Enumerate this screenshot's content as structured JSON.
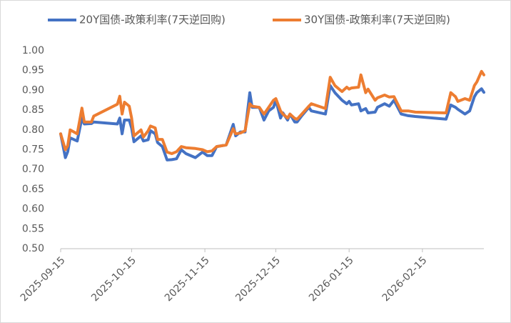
{
  "chart_data": {
    "type": "line",
    "x": [
      "2025-09-15",
      "2025-09-17",
      "2025-09-18",
      "2025-09-19",
      "2025-09-22",
      "2025-09-24",
      "2025-09-25",
      "2025-09-28",
      "2025-09-29",
      "2025-10-09",
      "2025-10-10",
      "2025-10-11",
      "2025-10-12",
      "2025-10-14",
      "2025-10-15",
      "2025-10-16",
      "2025-10-19",
      "2025-10-20",
      "2025-10-22",
      "2025-10-23",
      "2025-10-25",
      "2025-10-26",
      "2025-10-28",
      "2025-10-30",
      "2025-11-01",
      "2025-11-03",
      "2025-11-05",
      "2025-11-07",
      "2025-11-11",
      "2025-11-14",
      "2025-11-16",
      "2025-11-18",
      "2025-11-20",
      "2025-11-22",
      "2025-11-24",
      "2025-11-27",
      "2025-11-28",
      "2025-11-30",
      "2025-12-02",
      "2025-12-04",
      "2025-12-05",
      "2025-12-08",
      "2025-12-10",
      "2025-12-12",
      "2025-12-14",
      "2025-12-15",
      "2025-12-17",
      "2025-12-18",
      "2025-12-20",
      "2025-12-21",
      "2025-12-23",
      "2025-12-24",
      "2025-12-26",
      "2025-12-29",
      "2025-12-30",
      "2026-01-05",
      "2026-01-07",
      "2026-01-09",
      "2026-01-12",
      "2026-01-14",
      "2026-01-15",
      "2026-01-16",
      "2026-01-19",
      "2026-01-20",
      "2026-01-22",
      "2026-01-23",
      "2026-01-26",
      "2026-01-27",
      "2026-01-30",
      "2026-02-01",
      "2026-02-03",
      "2026-02-06",
      "2026-02-09",
      "2026-02-12",
      "2026-02-25",
      "2026-02-27",
      "2026-03-01",
      "2026-03-02",
      "2026-03-05",
      "2026-03-07",
      "2026-03-09",
      "2026-03-10",
      "2026-03-12",
      "2026-03-13"
    ],
    "series": [
      {
        "name": "20Y国债-政策利率(7天逆回购)",
        "color": "#4472c4",
        "values": [
          0.79,
          0.73,
          0.745,
          0.78,
          0.772,
          0.83,
          0.815,
          0.816,
          0.82,
          0.815,
          0.83,
          0.79,
          0.825,
          0.825,
          0.805,
          0.77,
          0.785,
          0.772,
          0.775,
          0.798,
          0.79,
          0.768,
          0.758,
          0.724,
          0.725,
          0.727,
          0.75,
          0.74,
          0.73,
          0.744,
          0.735,
          0.735,
          0.758,
          0.76,
          0.762,
          0.814,
          0.785,
          0.795,
          0.795,
          0.894,
          0.857,
          0.857,
          0.825,
          0.848,
          0.857,
          0.875,
          0.83,
          0.843,
          0.825,
          0.84,
          0.82,
          0.82,
          0.836,
          0.857,
          0.848,
          0.84,
          0.912,
          0.894,
          0.875,
          0.866,
          0.872,
          0.863,
          0.866,
          0.848,
          0.854,
          0.843,
          0.845,
          0.857,
          0.866,
          0.86,
          0.875,
          0.84,
          0.836,
          0.834,
          0.827,
          0.863,
          0.857,
          0.852,
          0.84,
          0.848,
          0.884,
          0.894,
          0.904,
          0.895
        ]
      },
      {
        "name": "30Y国债-政策利率(7天逆回购)",
        "color": "#ed7d31",
        "values": [
          0.79,
          0.75,
          0.76,
          0.8,
          0.79,
          0.855,
          0.82,
          0.82,
          0.835,
          0.865,
          0.885,
          0.84,
          0.87,
          0.86,
          0.83,
          0.785,
          0.8,
          0.782,
          0.798,
          0.81,
          0.805,
          0.776,
          0.776,
          0.744,
          0.74,
          0.745,
          0.758,
          0.755,
          0.753,
          0.75,
          0.745,
          0.747,
          0.758,
          0.76,
          0.762,
          0.803,
          0.79,
          0.792,
          0.798,
          0.866,
          0.86,
          0.857,
          0.84,
          0.857,
          0.875,
          0.879,
          0.848,
          0.84,
          0.83,
          0.84,
          0.829,
          0.827,
          0.84,
          0.86,
          0.866,
          0.854,
          0.933,
          0.912,
          0.897,
          0.908,
          0.903,
          0.906,
          0.908,
          0.939,
          0.894,
          0.903,
          0.875,
          0.881,
          0.888,
          0.883,
          0.884,
          0.848,
          0.848,
          0.845,
          0.843,
          0.894,
          0.884,
          0.872,
          0.879,
          0.875,
          0.912,
          0.921,
          0.948,
          0.939
        ]
      }
    ],
    "xlim": [
      "2025-09-15",
      "2026-03-13"
    ],
    "xticks": [
      "2025-09-15",
      "2025-10-15",
      "2025-11-15",
      "2025-12-15",
      "2026-01-15",
      "2026-02-15"
    ],
    "ylim": [
      0.5,
      1.0
    ],
    "yticks": [
      {
        "value": 0.5,
        "label": "0.50"
      },
      {
        "value": 0.55,
        "label": "0.55"
      },
      {
        "value": 0.6,
        "label": "0.60"
      },
      {
        "value": 0.65,
        "label": "0.65"
      },
      {
        "value": 0.7,
        "label": "0.70"
      },
      {
        "value": 0.75,
        "label": "0.75"
      },
      {
        "value": 0.8,
        "label": "0.80"
      },
      {
        "value": 0.85,
        "label": "0.85"
      },
      {
        "value": 0.9,
        "label": "0.90"
      },
      {
        "value": 0.95,
        "label": "0.95"
      },
      {
        "value": 1.0,
        "label": "1.00"
      }
    ],
    "grid": false,
    "legend": "top"
  }
}
